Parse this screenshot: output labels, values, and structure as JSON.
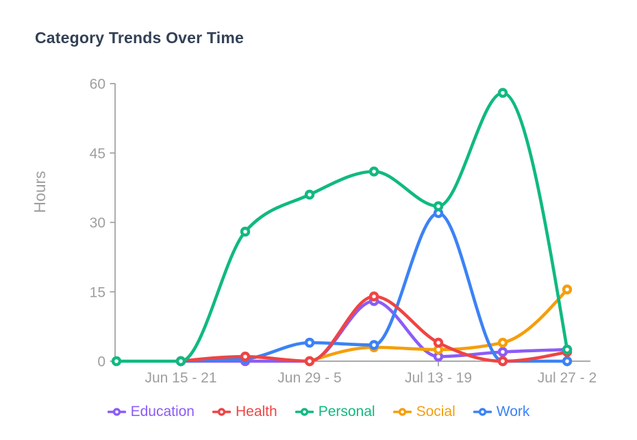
{
  "page": {
    "background_color": "#ffffff"
  },
  "chart_data": {
    "type": "line",
    "title": "Category Trends Over Time",
    "title_color": "#334155",
    "xlabel": "",
    "ylabel": "Hours",
    "ylim": [
      0,
      60
    ],
    "yticks": [
      0,
      15,
      30,
      45,
      60
    ],
    "categories": [
      "",
      "Jun 15 - 21",
      "",
      "Jun 29 - 5",
      "",
      "Jul 13 - 19",
      "",
      "Jul 27 - 2"
    ],
    "grid": false,
    "legend_position": "bottom",
    "axis_color": "#9e9e9e",
    "tick_text_color": "#9e9e9e",
    "series": [
      {
        "name": "Education",
        "color": "#8b5cf6",
        "values": [
          null,
          0,
          0,
          0,
          13,
          1,
          2,
          2.5
        ]
      },
      {
        "name": "Health",
        "color": "#ef4444",
        "values": [
          null,
          0,
          1,
          0,
          14,
          4,
          0,
          2
        ]
      },
      {
        "name": "Personal",
        "color": "#10b981",
        "values": [
          0,
          0,
          28,
          36,
          41,
          33.5,
          58,
          2.5
        ]
      },
      {
        "name": "Social",
        "color": "#f59e0b",
        "values": [
          null,
          null,
          null,
          0,
          3,
          2.5,
          4,
          15.5
        ]
      },
      {
        "name": "Work",
        "color": "#3b82f6",
        "values": [
          null,
          0,
          0.5,
          4,
          3.5,
          32,
          0,
          0
        ]
      }
    ],
    "draw_order": [
      "Education",
      "Social",
      "Work",
      "Health",
      "Personal"
    ]
  }
}
